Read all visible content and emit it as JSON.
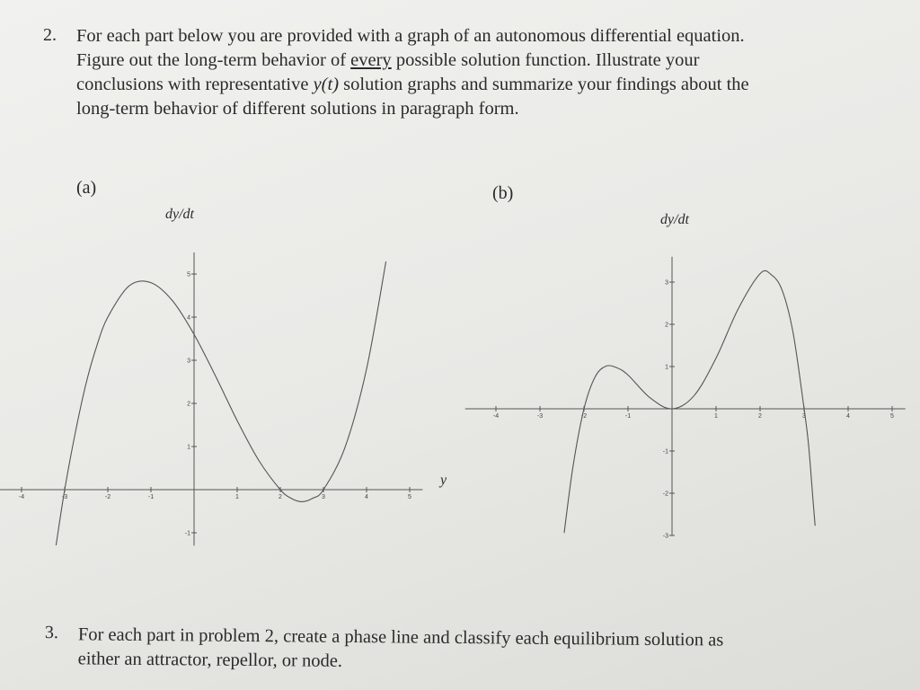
{
  "problem2": {
    "number": "2.",
    "line1": "For each part below you are provided with a graph of an autonomous differential equation.",
    "line2_pre": "Figure out the long-term behavior of ",
    "line2_underlined": "every",
    "line2_post": " possible solution function. Illustrate your",
    "line3_pre": "conclusions with representative ",
    "line3_italic": "y(t)",
    "line3_post": " solution graphs and summarize your findings about the",
    "line4": "long-term behavior of different solutions in paragraph form."
  },
  "problem3": {
    "number": "3.",
    "line1": "For each part in problem 2, create a phase line and classify each equilibrium solution as",
    "line2": "either an attractor, repellor, or node."
  },
  "chart_data": [
    {
      "type": "line",
      "part_label": "(a)",
      "ylabel": "dy/dt",
      "xlabel": "y",
      "x_ticks": [
        "-4",
        "-3",
        "-2",
        "-1",
        "1",
        "2",
        "3",
        "4",
        "5"
      ],
      "y_ticks": [
        "-1",
        "1",
        "2",
        "3",
        "4",
        "5"
      ],
      "xlim": [
        -4.5,
        5.3
      ],
      "ylim": [
        -1.3,
        5.5
      ],
      "grid": false,
      "x": [
        -3.2,
        -3,
        -2.75,
        -2.5,
        -2.25,
        -2,
        -1.5,
        -1,
        -0.5,
        0,
        0.5,
        1,
        1.5,
        2,
        2.25,
        2.5,
        2.75,
        3,
        3.5,
        4,
        4.45
      ],
      "values": [
        -1.29,
        0,
        1.34,
        2.48,
        3.35,
        4,
        4.73,
        4.8,
        4.38,
        3.6,
        2.63,
        1.6,
        0.68,
        0,
        -0.2,
        -0.28,
        -0.2,
        0,
        0.98,
        2.8,
        5.29
      ]
    },
    {
      "type": "line",
      "part_label": "(b)",
      "ylabel": "dy/dt",
      "x_ticks": [
        "-4",
        "-3",
        "-2",
        "-1",
        "1",
        "2",
        "3",
        "4",
        "5"
      ],
      "y_ticks": [
        "-3",
        "-2",
        "-1",
        "1",
        "2",
        "3"
      ],
      "xlim": [
        -4.7,
        5.3
      ],
      "ylim": [
        -3,
        3.6
      ],
      "grid": false,
      "x": [
        -2.45,
        -2.25,
        -2,
        -1.75,
        -1.5,
        -1.25,
        -1,
        -0.5,
        0,
        0.5,
        1,
        1.5,
        2,
        2.25,
        2.5,
        2.75,
        3,
        3.1,
        3.2,
        3.25
      ],
      "values": [
        -2.94,
        -1.37,
        0,
        0.75,
        1.01,
        0.97,
        0.8,
        0.26,
        0,
        0.31,
        1.2,
        2.36,
        3.2,
        3.18,
        2.81,
        1.8,
        0,
        -0.84,
        -2.13,
        -2.77
      ]
    }
  ]
}
